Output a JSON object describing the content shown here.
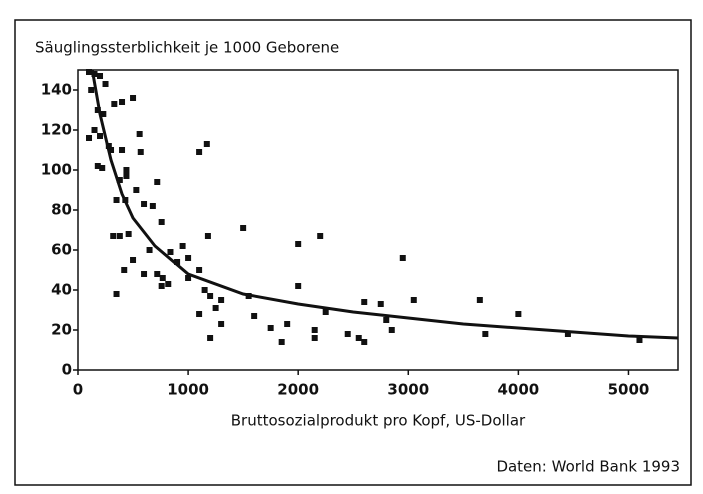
{
  "chart_data": {
    "type": "scatter",
    "title": "Säuglingssterblichkeit je 1000 Geborene",
    "x_label": "Bruttosozialprodukt pro Kopf, US-Dollar",
    "source": "Daten: World Bank 1993",
    "xlim": [
      0,
      5450
    ],
    "xticks": [
      0,
      1000,
      2000,
      3000,
      4000,
      5000
    ],
    "ylim": [
      0,
      150
    ],
    "yticks": [
      0,
      20,
      40,
      60,
      80,
      100,
      120,
      140
    ],
    "color": "#111111",
    "x": [
      100,
      150,
      200,
      250,
      120,
      180,
      230,
      100,
      150,
      200,
      280,
      300,
      180,
      220,
      330,
      400,
      500,
      560,
      570,
      400,
      440,
      380,
      440,
      350,
      430,
      320,
      380,
      460,
      350,
      420,
      500,
      530,
      600,
      680,
      720,
      760,
      650,
      600,
      720,
      770,
      760,
      820,
      840,
      900,
      950,
      1000,
      1000,
      1100,
      1150,
      1100,
      1170,
      1180,
      1200,
      1250,
      1300,
      1300,
      1100,
      1200,
      1500,
      1550,
      1600,
      1750,
      1850,
      1900,
      2000,
      2000,
      2150,
      2200,
      2150,
      2250,
      2450,
      2550,
      2600,
      2600,
      2750,
      2800,
      2850,
      2950,
      3050,
      3650,
      3700,
      4000,
      4450,
      5100
    ],
    "values": [
      149,
      148,
      147,
      143,
      140,
      130,
      128,
      116,
      120,
      117,
      112,
      110,
      102,
      101,
      133,
      134,
      136,
      118,
      109,
      110,
      100,
      95,
      97,
      85,
      85,
      67,
      67,
      68,
      38,
      50,
      55,
      90,
      83,
      82,
      94,
      74,
      60,
      48,
      48,
      46,
      42,
      43,
      59,
      54,
      62,
      56,
      46,
      50,
      40,
      109,
      113,
      67,
      37,
      31,
      35,
      23,
      28,
      16,
      71,
      37,
      27,
      21,
      14,
      23,
      63,
      42,
      20,
      67,
      16,
      29,
      18,
      16,
      14,
      34,
      33,
      25,
      20,
      56,
      35,
      35,
      18,
      28,
      18,
      15
    ],
    "curve": {
      "x": [
        130,
        200,
        300,
        400,
        500,
        700,
        1000,
        1500,
        2000,
        2500,
        3000,
        3500,
        4000,
        4500,
        5000,
        5450
      ],
      "values": [
        150,
        128,
        105,
        88,
        76,
        62,
        48,
        38,
        33,
        29,
        26,
        23,
        21,
        19,
        17,
        16
      ]
    }
  }
}
